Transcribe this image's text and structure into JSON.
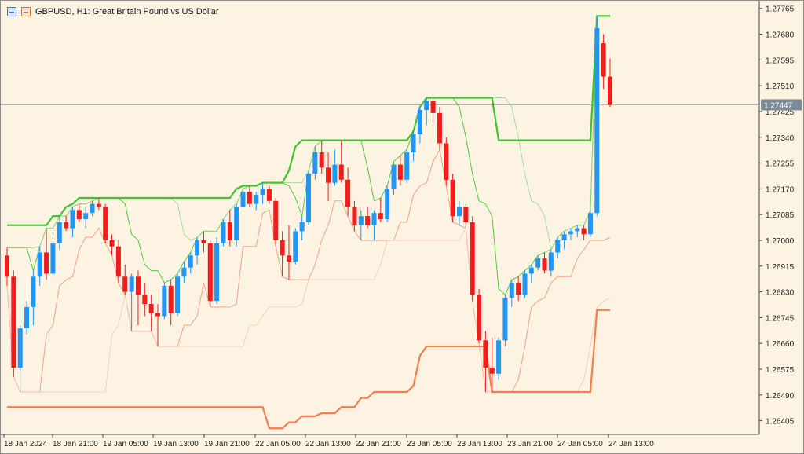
{
  "window": {
    "symbol_title": "GBPUSD, H1:  Great Britain Pound vs US Dollar"
  },
  "icons": {
    "window_icon": "chart-window-icon",
    "indicator_icon": "indicator-icon"
  },
  "colors": {
    "background": "#fdf3e2",
    "bull": "#2196f3",
    "bear": "#f21c1c",
    "upper_band_thick": "#3ec52c",
    "upper_band_thin": "#52c93c",
    "upper_band_faint": "#8fd88a",
    "lower_band_thick": "#f57e4c",
    "lower_band_thin": "#f5a184",
    "lower_band_faint": "#f7c5b2",
    "price_tag": "#7d8c99"
  },
  "chart_data": {
    "type": "candlestick",
    "symbol": "GBPUSD",
    "timeframe": "H1",
    "title": "GBPUSD, H1:  Great Britain Pound vs US Dollar",
    "y_ticks": [
      "1.27765",
      "1.27680",
      "1.27595",
      "1.27510",
      "1.27425",
      "1.27340",
      "1.27255",
      "1.27170",
      "1.27085",
      "1.27000",
      "1.26915",
      "1.26830",
      "1.26745",
      "1.26660",
      "1.26575",
      "1.26490",
      "1.26405"
    ],
    "ylim": [
      1.2636,
      1.27785
    ],
    "x_ticks": [
      "18 Jan 2024",
      "18 Jan 21:00",
      "19 Jan 05:00",
      "19 Jan 13:00",
      "19 Jan 21:00",
      "22 Jan 05:00",
      "22 Jan 13:00",
      "22 Jan 21:00",
      "23 Jan 05:00",
      "23 Jan 13:00",
      "23 Jan 21:00",
      "24 Jan 05:00",
      "24 Jan 13:00"
    ],
    "current_price": "1.27447",
    "candles": [
      {
        "o": 1.2695,
        "h": 1.26975,
        "l": 1.2685,
        "c": 1.2688
      },
      {
        "o": 1.2688,
        "h": 1.269,
        "l": 1.2655,
        "c": 1.2658
      },
      {
        "o": 1.2658,
        "h": 1.2672,
        "l": 1.265,
        "c": 1.2671
      },
      {
        "o": 1.2671,
        "h": 1.268,
        "l": 1.2669,
        "c": 1.2678
      },
      {
        "o": 1.2678,
        "h": 1.269,
        "l": 1.2672,
        "c": 1.2688
      },
      {
        "o": 1.2688,
        "h": 1.2698,
        "l": 1.2685,
        "c": 1.2696
      },
      {
        "o": 1.2696,
        "h": 1.2704,
        "l": 1.2687,
        "c": 1.2689
      },
      {
        "o": 1.2689,
        "h": 1.2701,
        "l": 1.2688,
        "c": 1.2699
      },
      {
        "o": 1.2699,
        "h": 1.2708,
        "l": 1.2697,
        "c": 1.2706
      },
      {
        "o": 1.2706,
        "h": 1.2708,
        "l": 1.2703,
        "c": 1.2704
      },
      {
        "o": 1.2704,
        "h": 1.2711,
        "l": 1.2701,
        "c": 1.271
      },
      {
        "o": 1.271,
        "h": 1.2712,
        "l": 1.2706,
        "c": 1.2707
      },
      {
        "o": 1.2707,
        "h": 1.2711,
        "l": 1.2704,
        "c": 1.2709
      },
      {
        "o": 1.2709,
        "h": 1.2713,
        "l": 1.2708,
        "c": 1.2712
      },
      {
        "o": 1.2712,
        "h": 1.2714,
        "l": 1.271,
        "c": 1.2711
      },
      {
        "o": 1.2711,
        "h": 1.2712,
        "l": 1.2699,
        "c": 1.27
      },
      {
        "o": 1.27,
        "h": 1.2702,
        "l": 1.2695,
        "c": 1.2698
      },
      {
        "o": 1.2698,
        "h": 1.27,
        "l": 1.2686,
        "c": 1.2688
      },
      {
        "o": 1.2688,
        "h": 1.2692,
        "l": 1.2682,
        "c": 1.2683
      },
      {
        "o": 1.2683,
        "h": 1.2689,
        "l": 1.267,
        "c": 1.2688
      },
      {
        "o": 1.2688,
        "h": 1.269,
        "l": 1.2672,
        "c": 1.2682
      },
      {
        "o": 1.2682,
        "h": 1.2686,
        "l": 1.2675,
        "c": 1.2679
      },
      {
        "o": 1.2679,
        "h": 1.2682,
        "l": 1.267,
        "c": 1.2676
      },
      {
        "o": 1.2676,
        "h": 1.2679,
        "l": 1.2665,
        "c": 1.2675
      },
      {
        "o": 1.2675,
        "h": 1.2686,
        "l": 1.2674,
        "c": 1.2685
      },
      {
        "o": 1.2685,
        "h": 1.2687,
        "l": 1.2672,
        "c": 1.2676
      },
      {
        "o": 1.2676,
        "h": 1.2689,
        "l": 1.2675,
        "c": 1.2688
      },
      {
        "o": 1.2688,
        "h": 1.2693,
        "l": 1.2686,
        "c": 1.2691
      },
      {
        "o": 1.2691,
        "h": 1.2696,
        "l": 1.2689,
        "c": 1.2695
      },
      {
        "o": 1.2695,
        "h": 1.2701,
        "l": 1.2692,
        "c": 1.27
      },
      {
        "o": 1.27,
        "h": 1.2703,
        "l": 1.2696,
        "c": 1.2699
      },
      {
        "o": 1.2699,
        "h": 1.27,
        "l": 1.2678,
        "c": 1.268
      },
      {
        "o": 1.268,
        "h": 1.2701,
        "l": 1.2679,
        "c": 1.2699
      },
      {
        "o": 1.2699,
        "h": 1.2707,
        "l": 1.2698,
        "c": 1.2706
      },
      {
        "o": 1.2706,
        "h": 1.271,
        "l": 1.2698,
        "c": 1.27
      },
      {
        "o": 1.27,
        "h": 1.2712,
        "l": 1.2698,
        "c": 1.2711
      },
      {
        "o": 1.2711,
        "h": 1.2717,
        "l": 1.2709,
        "c": 1.2716
      },
      {
        "o": 1.2716,
        "h": 1.2718,
        "l": 1.2711,
        "c": 1.2712
      },
      {
        "o": 1.2712,
        "h": 1.2716,
        "l": 1.271,
        "c": 1.2715
      },
      {
        "o": 1.2715,
        "h": 1.2719,
        "l": 1.2712,
        "c": 1.2717
      },
      {
        "o": 1.2717,
        "h": 1.2718,
        "l": 1.2712,
        "c": 1.2713
      },
      {
        "o": 1.2713,
        "h": 1.2714,
        "l": 1.2698,
        "c": 1.27
      },
      {
        "o": 1.27,
        "h": 1.2703,
        "l": 1.2688,
        "c": 1.2695
      },
      {
        "o": 1.2695,
        "h": 1.2705,
        "l": 1.2687,
        "c": 1.2693
      },
      {
        "o": 1.2693,
        "h": 1.2704,
        "l": 1.2692,
        "c": 1.2703
      },
      {
        "o": 1.2703,
        "h": 1.2708,
        "l": 1.27,
        "c": 1.2706
      },
      {
        "o": 1.2706,
        "h": 1.2723,
        "l": 1.2705,
        "c": 1.2722
      },
      {
        "o": 1.2722,
        "h": 1.2731,
        "l": 1.272,
        "c": 1.2729
      },
      {
        "o": 1.2729,
        "h": 1.2733,
        "l": 1.2722,
        "c": 1.2724
      },
      {
        "o": 1.2724,
        "h": 1.2729,
        "l": 1.2713,
        "c": 1.2719
      },
      {
        "o": 1.2719,
        "h": 1.273,
        "l": 1.2718,
        "c": 1.2725
      },
      {
        "o": 1.2725,
        "h": 1.2733,
        "l": 1.2719,
        "c": 1.272
      },
      {
        "o": 1.272,
        "h": 1.2724,
        "l": 1.2708,
        "c": 1.2711
      },
      {
        "o": 1.2711,
        "h": 1.2713,
        "l": 1.2703,
        "c": 1.2705
      },
      {
        "o": 1.2705,
        "h": 1.271,
        "l": 1.27,
        "c": 1.2708
      },
      {
        "o": 1.2708,
        "h": 1.2711,
        "l": 1.2704,
        "c": 1.2705
      },
      {
        "o": 1.2705,
        "h": 1.271,
        "l": 1.27,
        "c": 1.2709
      },
      {
        "o": 1.2709,
        "h": 1.2714,
        "l": 1.2706,
        "c": 1.2707
      },
      {
        "o": 1.2707,
        "h": 1.2718,
        "l": 1.2706,
        "c": 1.2717
      },
      {
        "o": 1.2717,
        "h": 1.2726,
        "l": 1.2715,
        "c": 1.2725
      },
      {
        "o": 1.2725,
        "h": 1.2728,
        "l": 1.2718,
        "c": 1.272
      },
      {
        "o": 1.272,
        "h": 1.273,
        "l": 1.2719,
        "c": 1.2729
      },
      {
        "o": 1.2729,
        "h": 1.2736,
        "l": 1.2726,
        "c": 1.2735
      },
      {
        "o": 1.2735,
        "h": 1.2744,
        "l": 1.2732,
        "c": 1.2743
      },
      {
        "o": 1.2743,
        "h": 1.2747,
        "l": 1.2738,
        "c": 1.2746
      },
      {
        "o": 1.2746,
        "h": 1.2747,
        "l": 1.2739,
        "c": 1.2742
      },
      {
        "o": 1.2742,
        "h": 1.2744,
        "l": 1.273,
        "c": 1.2732
      },
      {
        "o": 1.2732,
        "h": 1.2734,
        "l": 1.2718,
        "c": 1.272
      },
      {
        "o": 1.272,
        "h": 1.2722,
        "l": 1.2706,
        "c": 1.2708
      },
      {
        "o": 1.2708,
        "h": 1.2713,
        "l": 1.2705,
        "c": 1.2711
      },
      {
        "o": 1.2711,
        "h": 1.2712,
        "l": 1.2704,
        "c": 1.2706
      },
      {
        "o": 1.2706,
        "h": 1.2708,
        "l": 1.268,
        "c": 1.2682
      },
      {
        "o": 1.2682,
        "h": 1.2684,
        "l": 1.2666,
        "c": 1.2667
      },
      {
        "o": 1.2667,
        "h": 1.267,
        "l": 1.265,
        "c": 1.2658
      },
      {
        "o": 1.2658,
        "h": 1.2668,
        "l": 1.265,
        "c": 1.2656
      },
      {
        "o": 1.2656,
        "h": 1.2668,
        "l": 1.2654,
        "c": 1.2667
      },
      {
        "o": 1.2667,
        "h": 1.2682,
        "l": 1.2665,
        "c": 1.2681
      },
      {
        "o": 1.2681,
        "h": 1.2687,
        "l": 1.2678,
        "c": 1.2686
      },
      {
        "o": 1.2686,
        "h": 1.2688,
        "l": 1.268,
        "c": 1.2682
      },
      {
        "o": 1.2682,
        "h": 1.269,
        "l": 1.2681,
        "c": 1.2689
      },
      {
        "o": 1.2689,
        "h": 1.2692,
        "l": 1.2686,
        "c": 1.2691
      },
      {
        "o": 1.2691,
        "h": 1.2695,
        "l": 1.269,
        "c": 1.2694
      },
      {
        "o": 1.2694,
        "h": 1.2696,
        "l": 1.2689,
        "c": 1.269
      },
      {
        "o": 1.269,
        "h": 1.2697,
        "l": 1.2688,
        "c": 1.2696
      },
      {
        "o": 1.2696,
        "h": 1.2701,
        "l": 1.2694,
        "c": 1.27
      },
      {
        "o": 1.27,
        "h": 1.2703,
        "l": 1.2697,
        "c": 1.2702
      },
      {
        "o": 1.2702,
        "h": 1.2704,
        "l": 1.27,
        "c": 1.2703
      },
      {
        "o": 1.2703,
        "h": 1.2705,
        "l": 1.2701,
        "c": 1.2704
      },
      {
        "o": 1.2704,
        "h": 1.2705,
        "l": 1.27,
        "c": 1.2702
      },
      {
        "o": 1.2702,
        "h": 1.271,
        "l": 1.2701,
        "c": 1.2709
      },
      {
        "o": 1.2709,
        "h": 1.2774,
        "l": 1.2708,
        "c": 1.277
      },
      {
        "o": 1.2765,
        "h": 1.2768,
        "l": 1.275,
        "c": 1.2754
      },
      {
        "o": 1.2754,
        "h": 1.276,
        "l": 1.2744,
        "c": 1.27447
      }
    ],
    "upper_band": [
      1.2705,
      1.2705,
      1.2705,
      1.2705,
      1.2705,
      1.2705,
      1.2705,
      1.2708,
      1.2708,
      1.2711,
      1.2712,
      1.2714,
      1.2714,
      1.2714,
      1.2714,
      1.2714,
      1.2714,
      1.2714,
      1.2714,
      1.2714,
      1.2714,
      1.2714,
      1.2714,
      1.2714,
      1.2714,
      1.2714,
      1.2714,
      1.2714,
      1.2714,
      1.2714,
      1.2714,
      1.2714,
      1.2714,
      1.2714,
      1.2714,
      1.2717,
      1.2718,
      1.2718,
      1.2718,
      1.2719,
      1.2719,
      1.2719,
      1.2719,
      1.2723,
      1.2731,
      1.2733,
      1.2733,
      1.2733,
      1.2733,
      1.2733,
      1.2733,
      1.2733,
      1.2733,
      1.2733,
      1.2733,
      1.2733,
      1.2733,
      1.2733,
      1.2733,
      1.2733,
      1.2733,
      1.2733,
      1.2736,
      1.2744,
      1.2747,
      1.2747,
      1.2747,
      1.2747,
      1.2747,
      1.2747,
      1.2747,
      1.2747,
      1.2747,
      1.2747,
      1.2747,
      1.2733,
      1.2733,
      1.2733,
      1.2733,
      1.2733,
      1.2733,
      1.2733,
      1.2733,
      1.2733,
      1.2733,
      1.2733,
      1.2733,
      1.2733,
      1.2733,
      1.2733,
      1.2774,
      1.2774,
      1.2774
    ],
    "lower_band": [
      1.2645,
      1.2645,
      1.2645,
      1.2645,
      1.2645,
      1.2645,
      1.2645,
      1.2645,
      1.2645,
      1.2645,
      1.2645,
      1.2645,
      1.2645,
      1.2645,
      1.2645,
      1.2645,
      1.2645,
      1.2645,
      1.2645,
      1.2645,
      1.2645,
      1.2645,
      1.2645,
      1.2645,
      1.2645,
      1.2645,
      1.2645,
      1.2645,
      1.2645,
      1.2645,
      1.2645,
      1.2645,
      1.2645,
      1.2645,
      1.2645,
      1.2645,
      1.2645,
      1.2645,
      1.2645,
      1.2645,
      1.2638,
      1.2638,
      1.2638,
      1.264,
      1.264,
      1.2642,
      1.2642,
      1.2642,
      1.2643,
      1.2643,
      1.2643,
      1.2645,
      1.2645,
      1.2645,
      1.2648,
      1.2648,
      1.265,
      1.265,
      1.265,
      1.265,
      1.265,
      1.265,
      1.2652,
      1.2662,
      1.2665,
      1.2665,
      1.2665,
      1.2665,
      1.2665,
      1.2665,
      1.2665,
      1.2665,
      1.2665,
      1.2665,
      1.265,
      1.265,
      1.265,
      1.265,
      1.265,
      1.265,
      1.265,
      1.265,
      1.265,
      1.265,
      1.265,
      1.265,
      1.265,
      1.265,
      1.265,
      1.265,
      1.2677,
      1.2677,
      1.2677
    ]
  }
}
